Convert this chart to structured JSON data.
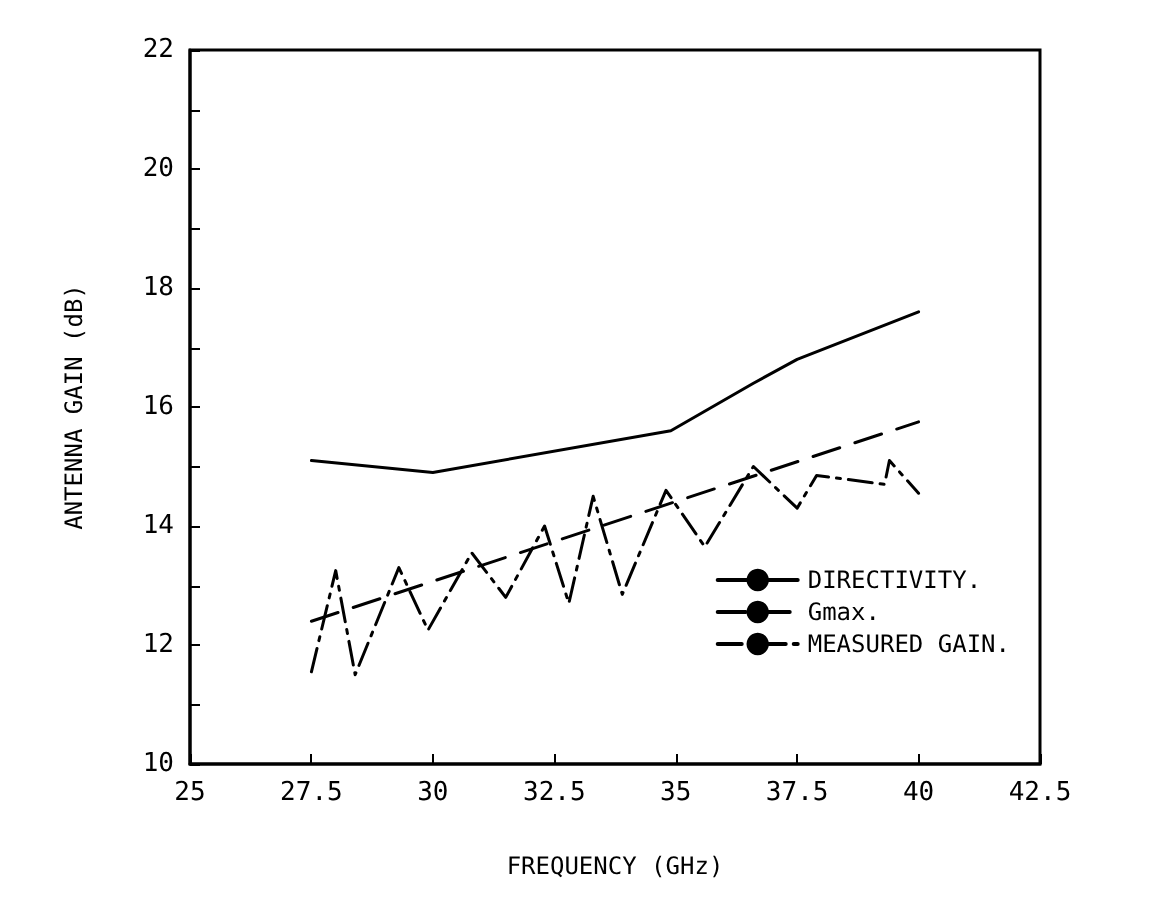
{
  "chart_data": {
    "type": "line",
    "xlabel": "FREQUENCY (GHz)",
    "ylabel": "ANTENNA GAIN (dB)",
    "xlim": [
      25,
      42.5
    ],
    "xticks": [
      25,
      27.5,
      30,
      32.5,
      35,
      37.5,
      40,
      42.5
    ],
    "ylim": [
      10,
      22
    ],
    "yticks": [
      10,
      {
        "value": 11,
        "label": null
      },
      12,
      {
        "value": 13,
        "label": null
      },
      14,
      {
        "value": 15,
        "label": null
      },
      16,
      {
        "value": 17,
        "label": null
      },
      18,
      {
        "value": 19,
        "label": null
      },
      20,
      {
        "value": 21,
        "label": null
      },
      22
    ],
    "grid": false,
    "legend": "bottom right",
    "marker": "none",
    "series": [
      {
        "name": "DIRECTIVITY.",
        "color": "#000000",
        "line_style": "solid",
        "x": [
          27.5,
          30,
          34.9,
          36.6,
          37.5,
          40
        ],
        "values": [
          15.1,
          14.9,
          15.6,
          16.4,
          16.8,
          17.6
        ]
      },
      {
        "name": "Gmax.",
        "color": "#000000",
        "line_style": "dashed",
        "x": [
          27.5,
          40
        ],
        "values": [
          12.4,
          15.75
        ]
      },
      {
        "name": "MEASURED GAIN.",
        "color": "#000000",
        "line_style": "dashdot",
        "x": [
          27.5,
          28.0,
          28.4,
          29.3,
          29.9,
          30.8,
          31.5,
          32.3,
          32.8,
          33.3,
          33.9,
          34.8,
          35.6,
          36.6,
          37.5,
          37.9,
          39.3,
          39.4,
          40
        ],
        "values": [
          11.55,
          13.25,
          11.5,
          13.3,
          12.25,
          13.55,
          12.8,
          14.0,
          12.7,
          14.5,
          12.85,
          14.6,
          13.65,
          15.0,
          14.3,
          14.85,
          14.7,
          15.1,
          14.55
        ]
      }
    ]
  }
}
